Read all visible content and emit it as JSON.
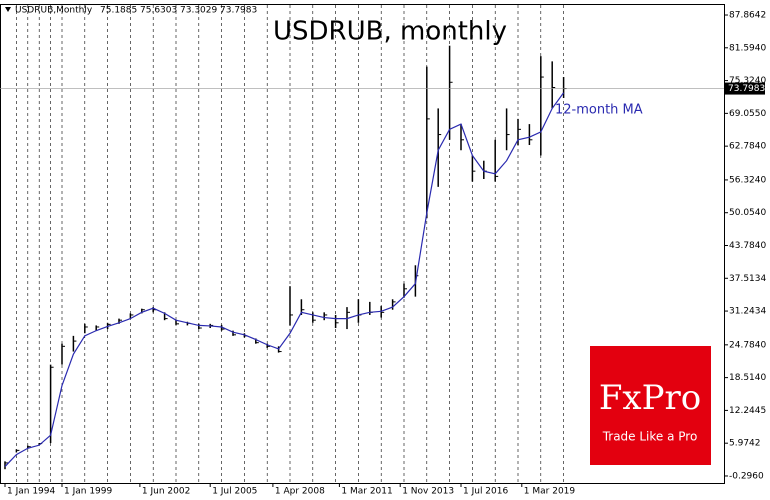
{
  "chart_data": {
    "type": "ohlc",
    "title": "USDRUB, monthly",
    "header": {
      "symbol": "USDRUB,Monthly",
      "open": 75.1885,
      "high": 75.6303,
      "low": 73.3029,
      "close": 73.7983
    },
    "last_price": 73.7983,
    "annotation": "12-month MA",
    "logo": {
      "brand": "FxPro",
      "tagline": "Trade Like a Pro"
    },
    "x": [
      "1994-01",
      "1995-01",
      "1996-01",
      "1997-01",
      "1998-01",
      "1999-01",
      "1999-07",
      "2000-01",
      "2000-07",
      "2001-01",
      "2001-07",
      "2002-01",
      "2002-07",
      "2003-01",
      "2003-07",
      "2004-01",
      "2004-07",
      "2005-01",
      "2005-07",
      "2006-01",
      "2006-07",
      "2007-01",
      "2007-07",
      "2008-01",
      "2008-07",
      "2009-01",
      "2009-07",
      "2010-01",
      "2010-07",
      "2011-01",
      "2011-07",
      "2012-01",
      "2012-07",
      "2013-01",
      "2013-07",
      "2014-01",
      "2014-07",
      "2015-01",
      "2015-07",
      "2016-01",
      "2016-07",
      "2017-01",
      "2017-07",
      "2018-01",
      "2018-07",
      "2019-01",
      "2019-07",
      "2020-01",
      "2020-07",
      "2021-01"
    ],
    "high": [
      2.5,
      4.8,
      5.5,
      6.0,
      21.0,
      25.0,
      26.5,
      28.8,
      28.5,
      29.0,
      29.8,
      30.8,
      31.7,
      32.0,
      31.0,
      29.5,
      29.2,
      28.8,
      28.8,
      28.6,
      27.5,
      27.0,
      26.0,
      25.0,
      24.5,
      36.0,
      33.5,
      31.0,
      31.0,
      30.5,
      32.0,
      33.5,
      33.0,
      32.2,
      33.5,
      36.5,
      40.0,
      78.0,
      70.0,
      82.0,
      67.0,
      61.0,
      60.0,
      64.0,
      70.0,
      68.0,
      67.0,
      80.0,
      79.0,
      76.0
    ],
    "low": [
      1.0,
      4.2,
      5.0,
      5.6,
      6.0,
      21.0,
      23.5,
      27.0,
      27.5,
      27.8,
      28.8,
      29.8,
      30.8,
      31.0,
      29.5,
      28.6,
      28.5,
      27.8,
      28.0,
      27.5,
      26.5,
      26.2,
      25.0,
      24.2,
      23.3,
      28.5,
      30.5,
      29.0,
      29.5,
      28.0,
      27.8,
      29.0,
      30.5,
      30.0,
      31.5,
      33.8,
      34.0,
      49.0,
      55.0,
      64.0,
      62.0,
      56.0,
      56.5,
      56.0,
      62.0,
      63.0,
      63.0,
      61.0,
      70.0,
      72.0
    ],
    "close": [
      2.2,
      4.6,
      5.3,
      5.9,
      20.5,
      24.5,
      25.5,
      28.2,
      28.2,
      28.7,
      29.5,
      30.5,
      31.5,
      31.5,
      29.8,
      28.8,
      28.9,
      28.0,
      28.5,
      27.8,
      26.7,
      26.5,
      25.2,
      24.5,
      23.5,
      30.5,
      31.5,
      29.5,
      30.5,
      29.0,
      31.0,
      30.5,
      31.0,
      31.0,
      33.0,
      35.5,
      38.0,
      68.0,
      65.0,
      75.0,
      64.0,
      58.0,
      58.0,
      57.0,
      65.0,
      66.0,
      64.0,
      76.0,
      74.0,
      73.8
    ],
    "color": "#000000",
    "ma": {
      "name": "12-month MA",
      "color": "#2a2ab0",
      "values": [
        1.5,
        3.8,
        5.0,
        5.6,
        7.5,
        17.0,
        23.0,
        26.5,
        27.5,
        28.3,
        29.0,
        29.8,
        31.0,
        31.8,
        30.8,
        29.5,
        29.0,
        28.5,
        28.4,
        28.2,
        27.2,
        26.7,
        25.8,
        24.8,
        24.0,
        27.0,
        31.0,
        30.5,
        30.0,
        29.8,
        29.8,
        30.5,
        31.0,
        31.2,
        32.0,
        34.0,
        36.5,
        50.0,
        62.0,
        66.0,
        67.0,
        61.0,
        58.0,
        57.5,
        60.0,
        64.0,
        64.5,
        65.5,
        70.0,
        73.0
      ]
    },
    "ylim": [
      -1.64,
      89.78
    ],
    "yticks": [
      {
        "value": -0.296,
        "label": "-0.2960"
      },
      {
        "value": 5.9742,
        "label": "5.9742"
      },
      {
        "value": 12.2445,
        "label": "12.2445"
      },
      {
        "value": 18.514,
        "label": "18.5140"
      },
      {
        "value": 24.784,
        "label": "24.7840"
      },
      {
        "value": 31.2434,
        "label": "31.2434"
      },
      {
        "value": 37.5134,
        "label": "37.5134"
      },
      {
        "value": 43.784,
        "label": "43.7840"
      },
      {
        "value": 50.054,
        "label": "50.0540"
      },
      {
        "value": 56.324,
        "label": "56.3240"
      },
      {
        "value": 62.784,
        "label": "62.7840"
      },
      {
        "value": 69.055,
        "label": "69.0550"
      },
      {
        "value": 75.324,
        "label": "75.3240"
      },
      {
        "value": 81.594,
        "label": "81.5940"
      },
      {
        "value": 87.8642,
        "label": "87.8642"
      }
    ],
    "xticks": [
      {
        "value": "1994-01",
        "label": "1 Jan 1994"
      },
      {
        "value": "1999-01",
        "label": "1 Jan 1999"
      },
      {
        "value": "2002-06",
        "label": "1 Jun 2002"
      },
      {
        "value": "2005-07",
        "label": "1 Jul 2005"
      },
      {
        "value": "2008-04",
        "label": "1 Apr 2008"
      },
      {
        "value": "2011-03",
        "label": "1 Mar 2011"
      },
      {
        "value": "2013-11",
        "label": "1 Nov 2013"
      },
      {
        "value": "2016-07",
        "label": "1 Jul 2016"
      },
      {
        "value": "2019-03",
        "label": "1 Mar 2019"
      }
    ],
    "grid": true
  }
}
